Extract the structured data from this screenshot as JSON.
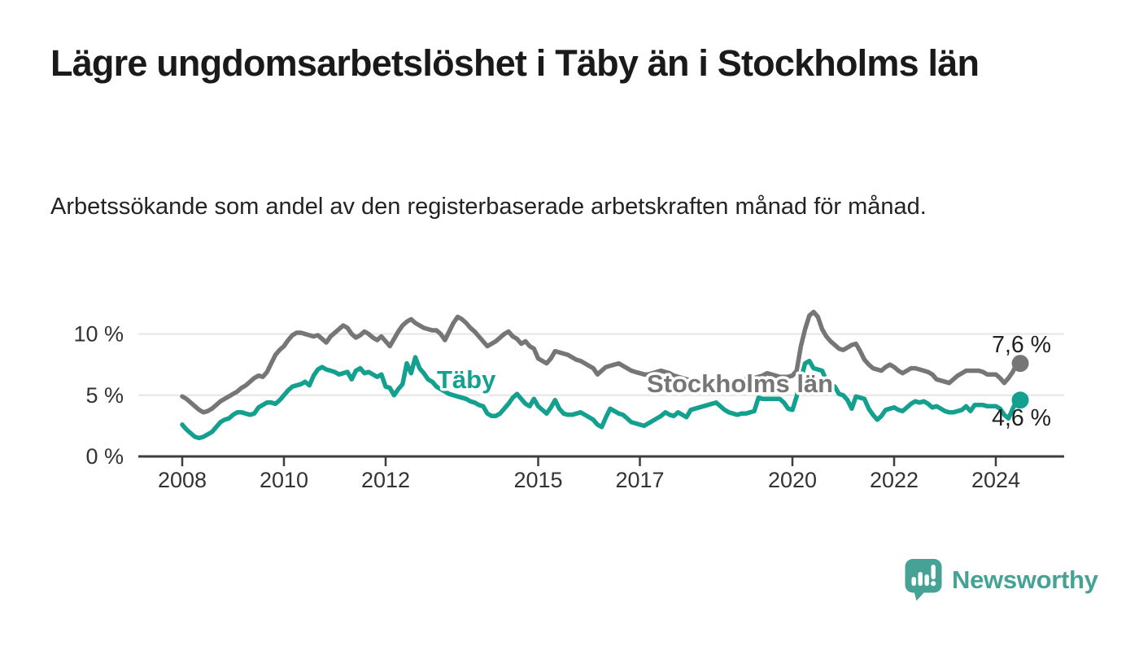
{
  "header": {
    "title": "Lägre ungdomsarbetslöshet i Täby än i Stockholms län",
    "subtitle": "Arbetssökande som andel av den registerbaserade arbetskraften månad för månad."
  },
  "chart_data": {
    "type": "line",
    "unit": "%",
    "frequency": "monthly",
    "start_year": 2008,
    "approx_end": "mid 2024",
    "ylim": [
      0,
      12.5
    ],
    "grid": "horizontal",
    "legend": "inline-labels",
    "y_ticks": [
      {
        "value": 0,
        "label": "0 %"
      },
      {
        "value": 5,
        "label": "5 %"
      },
      {
        "value": 10,
        "label": "10 %"
      }
    ],
    "x_ticks": [
      {
        "year": 2008,
        "label": "2008"
      },
      {
        "year": 2010,
        "label": "2010"
      },
      {
        "year": 2012,
        "label": "2012"
      },
      {
        "year": 2015,
        "label": "2015"
      },
      {
        "year": 2017,
        "label": "2017"
      },
      {
        "year": 2020,
        "label": "2020"
      },
      {
        "year": 2022,
        "label": "2022"
      },
      {
        "year": 2024,
        "label": "2024"
      }
    ],
    "style": {
      "axis_color": "#3d3d3d",
      "grid_color": "#e5e5e5",
      "tick_text_color": "#333333",
      "value_label_color": "#1f1f1f"
    },
    "series": [
      {
        "name": "Stockholms län",
        "color": "#767676",
        "end_label": "7,6 %",
        "end_value": 7.6,
        "values": [
          4.9,
          4.7,
          4.4,
          4.1,
          3.8,
          3.6,
          3.7,
          3.9,
          4.2,
          4.5,
          4.7,
          4.9,
          5.1,
          5.3,
          5.6,
          5.8,
          6.1,
          6.4,
          6.6,
          6.5,
          6.9,
          7.6,
          8.3,
          8.7,
          9.0,
          9.5,
          9.9,
          10.1,
          10.1,
          10.0,
          9.9,
          9.8,
          9.9,
          9.6,
          9.3,
          9.8,
          10.1,
          10.4,
          10.7,
          10.5,
          10.0,
          9.7,
          9.9,
          10.2,
          10.0,
          9.7,
          9.5,
          9.8,
          9.4,
          9.0,
          9.6,
          10.2,
          10.7,
          11.0,
          11.2,
          10.9,
          10.7,
          10.5,
          10.4,
          10.3,
          10.3,
          10.0,
          9.5,
          10.2,
          10.9,
          11.4,
          11.2,
          10.9,
          10.5,
          10.2,
          9.8,
          9.4,
          9.0,
          9.2,
          9.4,
          9.7,
          10.0,
          10.2,
          9.8,
          9.6,
          9.2,
          9.4,
          9.0,
          8.8,
          8.0,
          7.8,
          7.6,
          8.0,
          8.6,
          8.5,
          8.4,
          8.3,
          8.1,
          7.9,
          7.8,
          7.6,
          7.4,
          7.2,
          6.7,
          7.0,
          7.3,
          7.4,
          7.5,
          7.6,
          7.4,
          7.2,
          7.0,
          6.9,
          6.8,
          6.7,
          6.7,
          6.8,
          6.9,
          7.0,
          6.9,
          6.8,
          6.6,
          6.5,
          6.4,
          6.3,
          6.2,
          6.1,
          6.1,
          6.0,
          6.0,
          6.1,
          6.2,
          6.1,
          6.0,
          6.0,
          6.1,
          6.1,
          6.2,
          6.3,
          6.3,
          6.4,
          6.5,
          6.6,
          6.8,
          6.7,
          6.6,
          6.5,
          6.5,
          6.5,
          6.6,
          7.0,
          9.0,
          10.4,
          11.5,
          11.8,
          11.4,
          10.4,
          9.8,
          9.4,
          9.1,
          8.8,
          8.7,
          8.9,
          9.1,
          9.2,
          8.6,
          7.9,
          7.5,
          7.2,
          7.1,
          7.0,
          7.3,
          7.5,
          7.3,
          7.0,
          6.8,
          7.0,
          7.2,
          7.2,
          7.1,
          7.0,
          6.9,
          6.7,
          6.3,
          6.2,
          6.1,
          6.0,
          6.3,
          6.6,
          6.8,
          7.0,
          7.0,
          7.0,
          7.0,
          6.9,
          6.7,
          6.7,
          6.7,
          6.4,
          6.0,
          6.4,
          6.9,
          7.6
        ]
      },
      {
        "name": "Täby",
        "color": "#13a08f",
        "end_label": "4,6 %",
        "end_value": 4.6,
        "values": [
          2.6,
          2.2,
          1.9,
          1.6,
          1.5,
          1.6,
          1.8,
          2.0,
          2.4,
          2.8,
          3.0,
          3.1,
          3.4,
          3.6,
          3.6,
          3.5,
          3.4,
          3.5,
          4.0,
          4.2,
          4.4,
          4.4,
          4.3,
          4.6,
          5.0,
          5.4,
          5.7,
          5.8,
          5.9,
          6.1,
          5.8,
          6.6,
          7.1,
          7.3,
          7.1,
          7.0,
          6.9,
          6.7,
          6.8,
          6.9,
          6.3,
          7.0,
          7.2,
          6.8,
          6.9,
          6.7,
          6.5,
          6.7,
          5.7,
          5.6,
          5.0,
          5.5,
          5.9,
          7.6,
          6.8,
          8.1,
          7.2,
          6.8,
          6.3,
          6.1,
          5.7,
          5.5,
          5.3,
          5.1,
          5.0,
          4.9,
          4.8,
          4.7,
          4.5,
          4.4,
          4.2,
          4.1,
          3.5,
          3.3,
          3.3,
          3.5,
          3.9,
          4.3,
          4.8,
          5.1,
          4.7,
          4.3,
          4.1,
          4.7,
          4.1,
          3.8,
          3.5,
          4.0,
          4.6,
          3.9,
          3.5,
          3.4,
          3.4,
          3.5,
          3.6,
          3.4,
          3.2,
          3.0,
          2.6,
          2.4,
          3.2,
          3.9,
          3.7,
          3.5,
          3.4,
          3.1,
          2.8,
          2.7,
          2.6,
          2.5,
          2.7,
          2.9,
          3.1,
          3.3,
          3.6,
          3.4,
          3.3,
          3.6,
          3.4,
          3.2,
          3.8,
          3.9,
          4.0,
          4.1,
          4.2,
          4.3,
          4.4,
          4.1,
          3.8,
          3.6,
          3.5,
          3.4,
          3.5,
          3.5,
          3.6,
          3.7,
          4.8,
          4.7,
          4.7,
          4.7,
          4.7,
          4.7,
          4.4,
          3.9,
          3.8,
          4.9,
          6.3,
          7.6,
          7.8,
          7.2,
          7.1,
          7.0,
          6.2,
          5.9,
          5.7,
          5.1,
          5.0,
          4.6,
          3.9,
          4.9,
          4.8,
          4.7,
          3.9,
          3.4,
          3.0,
          3.3,
          3.8,
          3.9,
          4.0,
          3.8,
          3.7,
          4.0,
          4.3,
          4.5,
          4.4,
          4.5,
          4.3,
          4.0,
          4.1,
          3.9,
          3.7,
          3.6,
          3.6,
          3.7,
          3.8,
          4.1,
          3.7,
          4.2,
          4.2,
          4.2,
          4.1,
          4.1,
          4.1,
          3.9,
          3.4,
          3.1,
          3.9,
          4.6
        ]
      }
    ]
  },
  "footer": {
    "brand": "Newsworthy",
    "brand_color": "#45a294",
    "logo_icon": "bar-chart-speech-bubble-icon"
  }
}
